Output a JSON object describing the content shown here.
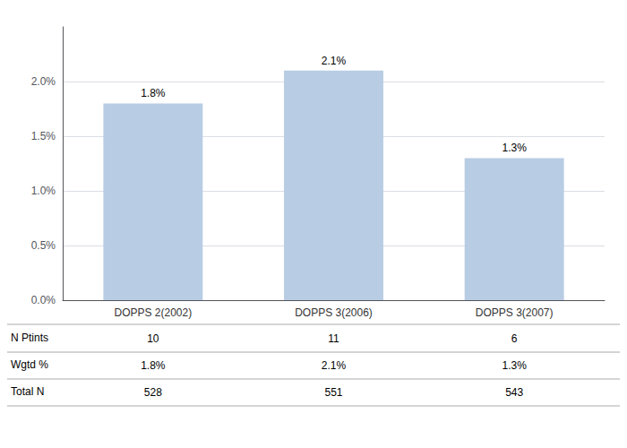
{
  "chart_data": {
    "type": "bar",
    "categories": [
      "DOPPS 2(2002)",
      "DOPPS 3(2006)",
      "DOPPS 3(2007)"
    ],
    "values": [
      1.8,
      2.1,
      1.3
    ],
    "value_labels": [
      "1.8%",
      "2.1%",
      "1.3%"
    ],
    "data_labels": true,
    "color": "#b8cce4",
    "ylim": [
      0,
      2.5
    ],
    "yticks": [
      {
        "value": 0,
        "label": "0.0%"
      },
      {
        "value": 0.5,
        "label": "0.5%"
      },
      {
        "value": 1.0,
        "label": "1.0%"
      },
      {
        "value": 1.5,
        "label": "1.5%"
      },
      {
        "value": 2.0,
        "label": "2.0%"
      }
    ],
    "grid": true,
    "table": {
      "row_labels": [
        "N Ptints",
        "Wgtd %",
        "Total N"
      ],
      "rows": [
        [
          "10",
          "11",
          "6"
        ],
        [
          "1.8%",
          "2.1%",
          "1.3%"
        ],
        [
          "528",
          "551",
          "543"
        ]
      ]
    }
  }
}
